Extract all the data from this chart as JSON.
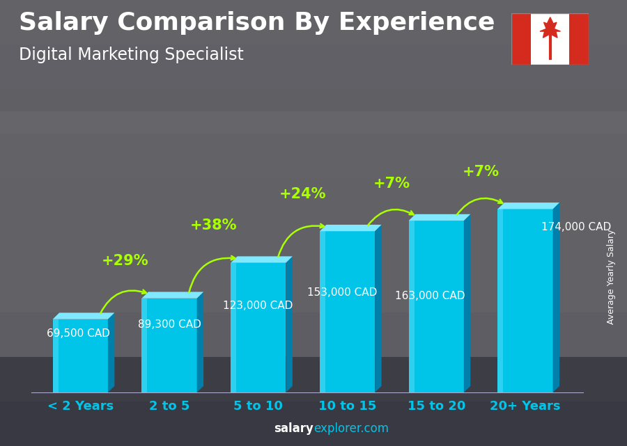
{
  "title": "Salary Comparison By Experience",
  "subtitle": "Digital Marketing Specialist",
  "ylabel": "Average Yearly Salary",
  "footer_bold": "salary",
  "footer_regular": "explorer.com",
  "categories": [
    "< 2 Years",
    "2 to 5",
    "5 to 10",
    "10 to 15",
    "15 to 20",
    "20+ Years"
  ],
  "values": [
    69500,
    89300,
    123000,
    153000,
    163000,
    174000
  ],
  "labels": [
    "69,500 CAD",
    "89,300 CAD",
    "123,000 CAD",
    "153,000 CAD",
    "163,000 CAD",
    "174,000 CAD"
  ],
  "pct_changes": [
    "+29%",
    "+38%",
    "+24%",
    "+7%",
    "+7%"
  ],
  "bar_color_face": "#00C5E8",
  "bar_color_light": "#80E8FF",
  "bar_color_side": "#007FAA",
  "bg_color": "#5a6070",
  "title_color": "#FFFFFF",
  "subtitle_color": "#FFFFFF",
  "label_color": "#FFFFFF",
  "pct_color": "#AAFF00",
  "arrow_color": "#AAFF00",
  "xtick_color": "#00C5E8",
  "ylabel_color": "#FFFFFF",
  "footer_bold_color": "#FFFFFF",
  "footer_regular_color": "#00C5E8",
  "ylim": [
    0,
    220000
  ],
  "title_fontsize": 26,
  "subtitle_fontsize": 17,
  "category_fontsize": 13,
  "label_fontsize": 11,
  "pct_fontsize": 15,
  "ylabel_fontsize": 9,
  "footer_fontsize": 12
}
